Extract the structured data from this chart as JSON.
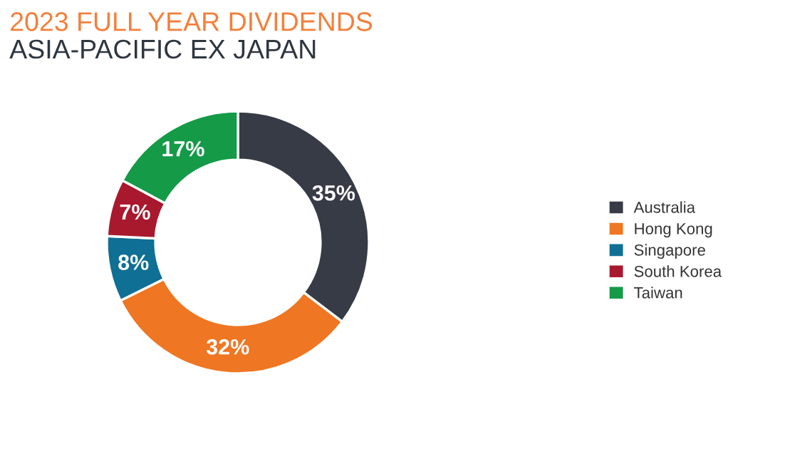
{
  "chart_data": {
    "type": "donut",
    "title": "2023 FULL YEAR DIVIDENDS",
    "subtitle": "ASIA-PACIFIC EX JAPAN",
    "categories": [
      "Australia",
      "Hong Kong",
      "Singapore",
      "South Korea",
      "Taiwan"
    ],
    "values": [
      35,
      32,
      8,
      7,
      17
    ],
    "colors": [
      "#373b46",
      "#ef7622",
      "#0f6f94",
      "#a8192e",
      "#159a48"
    ],
    "value_labels": [
      "35%",
      "32%",
      "8%",
      "7%",
      "17%"
    ],
    "legend": "right"
  }
}
